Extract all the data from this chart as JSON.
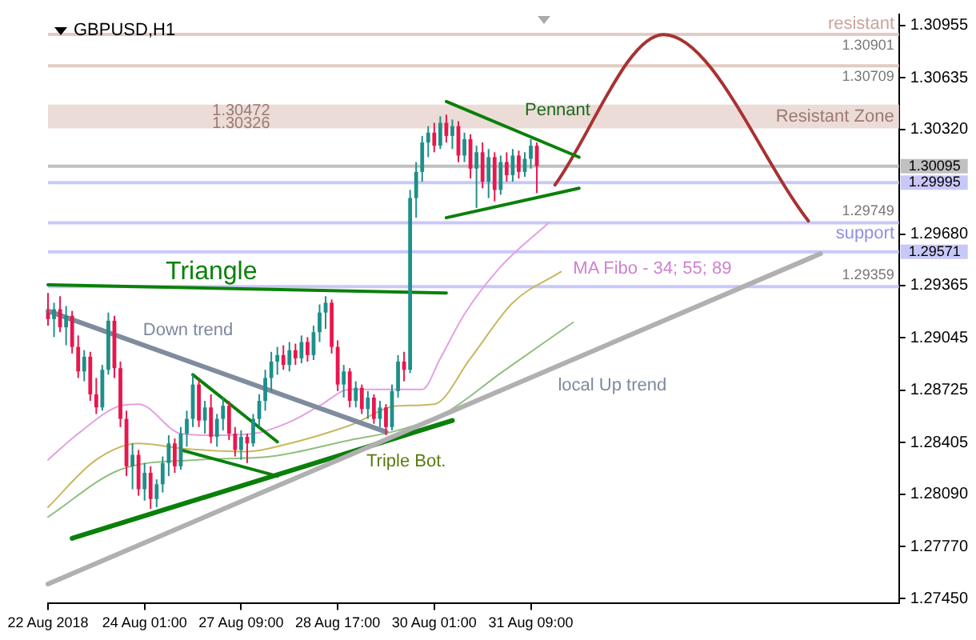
{
  "chart_data": {
    "type": "candlestick",
    "title": "GBPUSD,H1",
    "categories": [
      "22 Aug 2018",
      null,
      null,
      null,
      null,
      null,
      null,
      null,
      null,
      null,
      null,
      null,
      null,
      null,
      null,
      null,
      "24 Aug 01:00",
      null,
      null,
      null,
      null,
      null,
      null,
      null,
      null,
      null,
      null,
      null,
      null,
      null,
      null,
      null,
      "27 Aug 09:00",
      null,
      null,
      null,
      null,
      null,
      null,
      null,
      null,
      null,
      null,
      null,
      null,
      null,
      null,
      null,
      "28 Aug 17:00",
      null,
      null,
      null,
      null,
      null,
      null,
      null,
      null,
      null,
      null,
      null,
      null,
      null,
      null,
      null,
      "30 Aug 01:00",
      null,
      null,
      null,
      null,
      null,
      null,
      null,
      null,
      null,
      null,
      null,
      null,
      null,
      null,
      null,
      "31 Aug 09:00",
      null,
      null,
      null,
      null,
      null,
      null,
      null,
      null,
      null,
      null,
      null,
      null,
      null,
      null,
      null,
      null,
      null,
      null,
      null,
      null,
      null,
      null,
      null,
      null,
      null,
      null,
      null,
      null,
      null,
      null,
      null,
      null,
      null,
      null,
      null,
      null,
      null,
      null,
      null,
      null,
      null,
      null,
      null,
      null,
      null,
      null,
      null,
      null,
      null,
      null,
      null,
      null,
      null,
      null,
      null,
      null,
      null,
      null,
      null,
      null,
      null
    ],
    "ohlc": [
      [
        1.292,
        1.2932,
        1.2912,
        1.2916
      ],
      [
        1.2916,
        1.2926,
        1.2905,
        1.2922
      ],
      [
        1.2922,
        1.293,
        1.2908,
        1.2911
      ],
      [
        1.2911,
        1.2924,
        1.29,
        1.2918
      ],
      [
        1.2918,
        1.2921,
        1.2895,
        1.2899
      ],
      [
        1.2899,
        1.2906,
        1.288,
        1.2884
      ],
      [
        1.2884,
        1.2897,
        1.2878,
        1.2893
      ],
      [
        1.2893,
        1.2896,
        1.2866,
        1.287
      ],
      [
        1.287,
        1.288,
        1.2858,
        1.2862
      ],
      [
        1.2862,
        1.2888,
        1.286,
        1.2885
      ],
      [
        1.2885,
        1.292,
        1.2882,
        1.2915
      ],
      [
        1.2915,
        1.2918,
        1.288,
        1.2886
      ],
      [
        1.2886,
        1.289,
        1.285,
        1.2855
      ],
      [
        1.2855,
        1.286,
        1.282,
        1.2826
      ],
      [
        1.2826,
        1.284,
        1.2812,
        1.2833
      ],
      [
        1.2833,
        1.2836,
        1.2808,
        1.2812
      ],
      [
        1.2812,
        1.2828,
        1.2805,
        1.2822
      ],
      [
        1.2822,
        1.2826,
        1.28,
        1.2806
      ],
      [
        1.2806,
        1.2818,
        1.2801,
        1.2815
      ],
      [
        1.2815,
        1.2832,
        1.281,
        1.2828
      ],
      [
        1.2828,
        1.2845,
        1.282,
        1.284
      ],
      [
        1.284,
        1.2843,
        1.2822,
        1.2826
      ],
      [
        1.2826,
        1.285,
        1.2824,
        1.2846
      ],
      [
        1.2846,
        1.286,
        1.2838,
        1.2855
      ],
      [
        1.2855,
        1.2882,
        1.285,
        1.2876
      ],
      [
        1.2876,
        1.2879,
        1.285,
        1.2854
      ],
      [
        1.2854,
        1.2866,
        1.2846,
        1.2862
      ],
      [
        1.2862,
        1.287,
        1.284,
        1.2844
      ],
      [
        1.2844,
        1.2858,
        1.2838,
        1.2855
      ],
      [
        1.2855,
        1.2868,
        1.2848,
        1.2863
      ],
      [
        1.2863,
        1.2866,
        1.2842,
        1.2846
      ],
      [
        1.2846,
        1.285,
        1.2832,
        1.2836
      ],
      [
        1.2836,
        1.2848,
        1.283,
        1.2844
      ],
      [
        1.2844,
        1.2846,
        1.2828,
        1.284
      ],
      [
        1.284,
        1.2858,
        1.2838,
        1.2855
      ],
      [
        1.2855,
        1.287,
        1.285,
        1.2866
      ],
      [
        1.2866,
        1.2885,
        1.286,
        1.288
      ],
      [
        1.288,
        1.2896,
        1.2872,
        1.289
      ],
      [
        1.289,
        1.2899,
        1.2882,
        1.2894
      ],
      [
        1.2894,
        1.29,
        1.2885,
        1.2888
      ],
      [
        1.2888,
        1.2902,
        1.2884,
        1.2897
      ],
      [
        1.2897,
        1.2901,
        1.2888,
        1.2892
      ],
      [
        1.2892,
        1.2906,
        1.2889,
        1.2902
      ],
      [
        1.2902,
        1.2905,
        1.289,
        1.2894
      ],
      [
        1.2894,
        1.2912,
        1.2891,
        1.2908
      ],
      [
        1.2908,
        1.2925,
        1.2902,
        1.292
      ],
      [
        1.292,
        1.293,
        1.291,
        1.2926
      ],
      [
        1.2926,
        1.2928,
        1.2895,
        1.2899
      ],
      [
        1.2899,
        1.2903,
        1.2872,
        1.2876
      ],
      [
        1.2876,
        1.2888,
        1.2868,
        1.2884
      ],
      [
        1.2884,
        1.2886,
        1.2862,
        1.2866
      ],
      [
        1.2866,
        1.2878,
        1.2862,
        1.2874
      ],
      [
        1.2874,
        1.2876,
        1.2858,
        1.2861
      ],
      [
        1.2861,
        1.2872,
        1.2855,
        1.2868
      ],
      [
        1.2868,
        1.287,
        1.2852,
        1.2855
      ],
      [
        1.2855,
        1.2866,
        1.285,
        1.2862
      ],
      [
        1.2862,
        1.2864,
        1.2845,
        1.285
      ],
      [
        1.285,
        1.2876,
        1.2848,
        1.2872
      ],
      [
        1.2872,
        1.2894,
        1.2868,
        1.289
      ],
      [
        1.289,
        1.2896,
        1.2878,
        1.2885
      ],
      [
        1.2885,
        1.2995,
        1.2883,
        1.299
      ],
      [
        1.299,
        1.3012,
        1.2978,
        1.3006
      ],
      [
        1.3006,
        1.3028,
        1.3,
        1.3024
      ],
      [
        1.3024,
        1.3034,
        1.3015,
        1.303
      ],
      [
        1.303,
        1.3036,
        1.3018,
        1.3022
      ],
      [
        1.3022,
        1.304,
        1.302,
        1.3036
      ],
      [
        1.3036,
        1.3041,
        1.3024,
        1.3028
      ],
      [
        1.3028,
        1.3038,
        1.302,
        1.3034
      ],
      [
        1.3034,
        1.3037,
        1.3012,
        1.3016
      ],
      [
        1.3016,
        1.303,
        1.3012,
        1.3026
      ],
      [
        1.3026,
        1.3029,
        1.3002,
        1.3008
      ],
      [
        1.3008,
        1.3022,
        1.2984,
        1.3018
      ],
      [
        1.3018,
        1.3024,
        1.2996,
        1.3
      ],
      [
        1.3,
        1.302,
        1.299,
        1.3015
      ],
      [
        1.3015,
        1.3018,
        1.2988,
        1.2995
      ],
      [
        1.2995,
        1.3016,
        1.2992,
        1.3012
      ],
      [
        1.3012,
        1.3018,
        1.3,
        1.3004
      ],
      [
        1.3004,
        1.302,
        1.3,
        1.3016
      ],
      [
        1.3016,
        1.3019,
        1.3002,
        1.3006
      ],
      [
        1.3006,
        1.3018,
        1.3003,
        1.3014
      ],
      [
        1.3014,
        1.3026,
        1.3008,
        1.3022
      ],
      [
        1.3022,
        1.3024,
        1.2993,
        1.30095
      ],
      null,
      null,
      null,
      null,
      null,
      null,
      null,
      null,
      null,
      null,
      null,
      null,
      null,
      null,
      null,
      null,
      null,
      null,
      null,
      null,
      null,
      null,
      null,
      null,
      null,
      null,
      null,
      null,
      null,
      null,
      null,
      null,
      null,
      null,
      null,
      null,
      null,
      null,
      null,
      null,
      null,
      null,
      null,
      null,
      null,
      null,
      null,
      null,
      null,
      null,
      null,
      null,
      null,
      null,
      null,
      null,
      null,
      null,
      null,
      null
    ],
    "series": [
      {
        "type": "line",
        "color": "#7f8c9e",
        "values": [
          1.2921,
          null,
          null,
          null,
          null,
          null,
          null,
          null,
          null,
          null,
          null,
          null,
          null,
          null,
          null,
          null,
          null,
          null,
          null,
          null,
          null,
          null,
          null,
          null,
          null,
          null,
          null,
          null,
          null,
          null,
          null,
          null,
          null,
          null,
          null,
          null,
          null,
          null,
          null,
          null,
          null,
          null,
          null,
          null,
          null,
          null,
          null,
          null,
          null,
          null,
          null,
          null,
          null,
          null,
          null,
          null,
          1.2847,
          null,
          null,
          null,
          null,
          null,
          null,
          null,
          null,
          null,
          null,
          null,
          null,
          null,
          null,
          null,
          null,
          null,
          null,
          null,
          null,
          null,
          null,
          null,
          null,
          null,
          null,
          null,
          null,
          null,
          null,
          null,
          null,
          null,
          null,
          null,
          null,
          null,
          null,
          null,
          null,
          null,
          null,
          null,
          null,
          null,
          null,
          null,
          null,
          null,
          null,
          null,
          null,
          null,
          null,
          null,
          null,
          null,
          null,
          null,
          null,
          null,
          null,
          null,
          null,
          null,
          null,
          null,
          null,
          null,
          null,
          null,
          null,
          null,
          null,
          null,
          null,
          null,
          null,
          null,
          null,
          null,
          null,
          null,
          null,
          null
        ]
      },
      {
        "type": "line",
        "color": "#b0b0b0",
        "values": [
          1.2754,
          null,
          null,
          null,
          null,
          null,
          null,
          null,
          null,
          null,
          null,
          null,
          null,
          null,
          null,
          null,
          null,
          null,
          null,
          null,
          null,
          null,
          null,
          null,
          null,
          null,
          null,
          null,
          null,
          null,
          null,
          null,
          null,
          null,
          null,
          null,
          null,
          null,
          null,
          null,
          null,
          null,
          null,
          null,
          null,
          null,
          null,
          null,
          null,
          null,
          null,
          null,
          null,
          null,
          null,
          null,
          null,
          null,
          null,
          null,
          null,
          null,
          null,
          null,
          null,
          null,
          null,
          null,
          null,
          null,
          null,
          null,
          null,
          null,
          null,
          null,
          null,
          null,
          null,
          null,
          null,
          null,
          null,
          null,
          null,
          null,
          null,
          null,
          null,
          null,
          null,
          null,
          null,
          null,
          null,
          null,
          null,
          null,
          null,
          null,
          null,
          null,
          null,
          null,
          null,
          null,
          null,
          null,
          null,
          null,
          null,
          null,
          null,
          null,
          null,
          null,
          null,
          null,
          null,
          null,
          null,
          null,
          null,
          null,
          null,
          null,
          null,
          null,
          1.2956,
          null,
          null,
          null,
          null,
          null,
          null,
          null,
          null,
          null,
          null,
          null,
          null,
          null
        ]
      },
      {
        "type": "line",
        "color": "#0a800a",
        "values": [
          1.2937,
          null,
          null,
          null,
          null,
          null,
          null,
          null,
          null,
          null,
          null,
          null,
          null,
          null,
          null,
          null,
          null,
          null,
          null,
          null,
          null,
          null,
          null,
          null,
          null,
          null,
          null,
          null,
          null,
          null,
          null,
          null,
          null,
          null,
          null,
          null,
          null,
          null,
          null,
          null,
          null,
          null,
          null,
          null,
          null,
          null,
          null,
          null,
          null,
          null,
          null,
          null,
          null,
          null,
          null,
          null,
          null,
          null,
          null,
          null,
          null,
          null,
          null,
          null,
          null,
          null,
          1.2932,
          null,
          null,
          null,
          null,
          null,
          null,
          null,
          null,
          null,
          null,
          null,
          null,
          null,
          null,
          null,
          null,
          null,
          null,
          null,
          null,
          null,
          null,
          null,
          null,
          null,
          null,
          null,
          null,
          null,
          null,
          null,
          null,
          null,
          null,
          null,
          null,
          null,
          null,
          null,
          null,
          null,
          null,
          null,
          null,
          null,
          null,
          null,
          null,
          null,
          null,
          null,
          null,
          null,
          null,
          null,
          null,
          null,
          null,
          null,
          null,
          null,
          null,
          null,
          null,
          null,
          null,
          null,
          null,
          null,
          null,
          null,
          null,
          null,
          null,
          null
        ]
      },
      {
        "type": "line",
        "color": "#0a800a",
        "values": [
          null,
          null,
          null,
          null,
          null,
          null,
          null,
          null,
          null,
          null,
          null,
          null,
          null,
          null,
          null,
          null,
          null,
          null,
          null,
          null,
          null,
          null,
          null,
          null,
          null,
          null,
          null,
          null,
          null,
          null,
          null,
          null,
          null,
          null,
          null,
          null,
          null,
          null,
          null,
          null,
          null,
          null,
          null,
          null,
          null,
          null,
          null,
          null,
          null,
          null,
          null,
          null,
          null,
          null,
          null,
          null,
          null,
          null,
          null,
          null,
          null,
          null,
          null,
          null,
          null,
          null,
          1.3049,
          null,
          null,
          null,
          null,
          null,
          null,
          null,
          null,
          null,
          null,
          null,
          null,
          null,
          null,
          null,
          null,
          null,
          null,
          null,
          null,
          null,
          1.3015,
          null,
          null,
          null,
          null,
          null,
          null,
          null,
          null,
          null,
          null,
          null,
          null,
          null,
          null,
          null,
          null,
          null,
          null,
          null,
          null,
          null,
          null,
          null,
          null,
          null,
          null,
          null,
          null,
          null,
          null,
          null,
          null,
          null,
          null,
          null,
          null,
          null,
          null,
          null,
          null,
          null,
          null,
          null,
          null,
          null,
          null,
          null,
          null,
          null,
          null,
          null,
          null,
          null
        ]
      },
      {
        "type": "line",
        "color": "#0a800a",
        "values": [
          null,
          null,
          null,
          null,
          null,
          null,
          null,
          null,
          null,
          null,
          null,
          null,
          null,
          null,
          null,
          null,
          null,
          null,
          null,
          null,
          null,
          null,
          null,
          null,
          null,
          null,
          null,
          null,
          null,
          null,
          null,
          null,
          null,
          null,
          null,
          null,
          null,
          null,
          null,
          null,
          null,
          null,
          null,
          null,
          null,
          null,
          null,
          null,
          null,
          null,
          null,
          null,
          null,
          null,
          null,
          null,
          null,
          null,
          null,
          null,
          null,
          null,
          null,
          null,
          null,
          null,
          1.2978,
          null,
          null,
          null,
          null,
          null,
          null,
          null,
          null,
          null,
          null,
          null,
          null,
          null,
          null,
          null,
          null,
          null,
          null,
          null,
          null,
          null,
          1.2996,
          null,
          null,
          null,
          null,
          null,
          null,
          null,
          null,
          null,
          null,
          null,
          null,
          null,
          null,
          null,
          null,
          null,
          null,
          null,
          null,
          null,
          null,
          null,
          null,
          null,
          null,
          null,
          null,
          null,
          null,
          null,
          null,
          null,
          null,
          null,
          null,
          null,
          null,
          null,
          null,
          null,
          null,
          null,
          null,
          null,
          null,
          null,
          null,
          null,
          null,
          null,
          null,
          null
        ]
      },
      {
        "type": "line",
        "color": "#0a800a",
        "values": [
          null,
          null,
          null,
          null,
          null,
          null,
          null,
          null,
          null,
          null,
          null,
          null,
          null,
          null,
          null,
          null,
          null,
          null,
          null,
          null,
          null,
          null,
          null,
          null,
          1.2882,
          null,
          null,
          null,
          null,
          null,
          null,
          null,
          null,
          null,
          null,
          null,
          null,
          null,
          1.2841,
          null,
          null,
          null,
          null,
          null,
          null,
          null,
          null,
          null,
          null,
          null,
          null,
          null,
          null,
          null,
          null,
          null,
          null,
          null,
          null,
          null,
          null,
          null,
          null,
          null,
          null,
          null,
          null,
          null,
          null,
          null,
          null,
          null,
          null,
          null,
          null,
          null,
          null,
          null,
          null,
          null,
          null,
          null,
          null,
          null,
          null,
          null,
          null,
          null,
          null,
          null,
          null,
          null,
          null,
          null,
          null,
          null,
          null,
          null,
          null,
          null,
          null,
          null,
          null,
          null,
          null,
          null,
          null,
          null,
          null,
          null,
          null,
          null,
          null,
          null,
          null,
          null,
          null,
          null,
          null,
          null,
          null,
          null,
          null,
          null,
          null,
          null,
          null,
          null,
          null,
          null,
          null,
          null,
          null,
          null,
          null,
          null,
          null,
          null,
          null,
          null,
          null,
          null
        ]
      },
      {
        "type": "line",
        "color": "#0a800a",
        "values": [
          null,
          null,
          null,
          null,
          null,
          null,
          null,
          null,
          null,
          null,
          null,
          null,
          null,
          null,
          null,
          null,
          null,
          null,
          null,
          null,
          null,
          null,
          1.2836,
          null,
          null,
          null,
          null,
          null,
          null,
          null,
          null,
          null,
          null,
          null,
          null,
          null,
          null,
          null,
          1.282,
          null,
          null,
          null,
          null,
          null,
          null,
          null,
          null,
          null,
          null,
          null,
          null,
          null,
          null,
          null,
          null,
          null,
          null,
          null,
          null,
          null,
          null,
          null,
          null,
          null,
          null,
          null,
          null,
          null,
          null,
          null,
          null,
          null,
          null,
          null,
          null,
          null,
          null,
          null,
          null,
          null,
          null,
          null,
          null,
          null,
          null,
          null,
          null,
          null,
          null,
          null,
          null,
          null,
          null,
          null,
          null,
          null,
          null,
          null,
          null,
          null,
          null,
          null,
          null,
          null,
          null,
          null,
          null,
          null,
          null,
          null,
          null,
          null,
          null,
          null,
          null,
          null,
          null,
          null,
          null,
          null,
          null,
          null,
          null,
          null,
          null,
          null,
          null,
          null,
          null,
          null,
          null,
          null,
          null,
          null,
          null,
          null,
          null,
          null,
          null,
          null,
          null,
          null
        ]
      },
      {
        "type": "line",
        "color": "#0a800a",
        "values": [
          null,
          null,
          null,
          null,
          1.2782,
          null,
          null,
          null,
          null,
          null,
          null,
          null,
          null,
          null,
          null,
          null,
          null,
          null,
          null,
          null,
          null,
          null,
          null,
          null,
          null,
          null,
          null,
          null,
          null,
          null,
          null,
          null,
          null,
          null,
          null,
          null,
          null,
          null,
          null,
          null,
          null,
          null,
          null,
          null,
          null,
          null,
          null,
          null,
          null,
          null,
          null,
          null,
          null,
          null,
          null,
          null,
          null,
          null,
          null,
          null,
          null,
          null,
          null,
          null,
          null,
          null,
          null,
          1.2854,
          null,
          null,
          null,
          null,
          null,
          null,
          null,
          null,
          null,
          null,
          null,
          null,
          null,
          null,
          null,
          null,
          null,
          null,
          null,
          null,
          null,
          null,
          null,
          null,
          null,
          null,
          null,
          null,
          null,
          null,
          null,
          null,
          null,
          null,
          null,
          null,
          null,
          null,
          null,
          null,
          null,
          null,
          null,
          null,
          null,
          null,
          null,
          null,
          null,
          null,
          null,
          null,
          null,
          null,
          null,
          null,
          null,
          null,
          null,
          null,
          null,
          null,
          null,
          null,
          null,
          null,
          null,
          null,
          null,
          null,
          null,
          null,
          null,
          null
        ]
      },
      {
        "type": "line",
        "color": "#a83232",
        "values": [
          null,
          null,
          null,
          null,
          null,
          null,
          null,
          null,
          null,
          null,
          null,
          null,
          null,
          null,
          null,
          null,
          null,
          null,
          null,
          null,
          null,
          null,
          null,
          null,
          null,
          null,
          null,
          null,
          null,
          null,
          null,
          null,
          null,
          null,
          null,
          null,
          null,
          null,
          null,
          null,
          null,
          null,
          null,
          null,
          null,
          null,
          null,
          null,
          null,
          null,
          null,
          null,
          null,
          null,
          null,
          null,
          null,
          null,
          null,
          null,
          null,
          null,
          null,
          null,
          null,
          null,
          null,
          null,
          null,
          null,
          null,
          null,
          null,
          null,
          null,
          null,
          null,
          null,
          null,
          null,
          null,
          null,
          null,
          null,
          1.2998,
          null,
          null,
          null,
          null,
          null,
          null,
          null,
          null,
          null,
          null,
          null,
          null,
          null,
          null,
          null,
          null,
          null,
          1.309,
          null,
          null,
          null,
          null,
          null,
          null,
          null,
          null,
          null,
          null,
          null,
          null,
          null,
          null,
          null,
          null,
          null,
          null,
          null,
          null,
          null,
          null,
          null,
          1.2976,
          null,
          null,
          null,
          null,
          null,
          null,
          null,
          null,
          null,
          null,
          null,
          null,
          null,
          null,
          null
        ]
      },
      {
        "type": "line",
        "color": "#e2a0e2",
        "values": [
          1.283,
          null,
          null,
          null,
          null,
          1.2846,
          null,
          null,
          null,
          null,
          null,
          null,
          1.2863,
          null,
          null,
          1.2864,
          null,
          null,
          null,
          null,
          null,
          null,
          1.2846,
          null,
          null,
          null,
          null,
          1.2845,
          null,
          null,
          null,
          null,
          null,
          null,
          1.2846,
          null,
          null,
          null,
          null,
          null,
          1.2853,
          null,
          null,
          null,
          null,
          1.2863,
          null,
          null,
          null,
          null,
          1.2873,
          null,
          null,
          null,
          null,
          null,
          null,
          null,
          1.2873,
          null,
          null,
          null,
          1.2873,
          null,
          null,
          1.2892,
          null,
          null,
          null,
          1.2919,
          null,
          null,
          null,
          null,
          null,
          1.2948,
          null,
          null,
          null,
          null,
          null,
          null,
          null,
          1.2975,
          null,
          null,
          null,
          null,
          null,
          null,
          null,
          null,
          null,
          null,
          null,
          null,
          null,
          null,
          null,
          null,
          null,
          null,
          null,
          null,
          null,
          null,
          null,
          null,
          null,
          null,
          null,
          null,
          null,
          null,
          null,
          null,
          null,
          null,
          null,
          null,
          null,
          null,
          null,
          null,
          null,
          null,
          null,
          null,
          null,
          null,
          null,
          null,
          null,
          null,
          null,
          null,
          null,
          null,
          null,
          null,
          null,
          null
        ]
      },
      {
        "type": "line",
        "color": "#c8b860",
        "values": [
          1.2801,
          null,
          null,
          null,
          null,
          null,
          null,
          null,
          1.283,
          null,
          null,
          null,
          null,
          null,
          null,
          1.284,
          null,
          null,
          null,
          null,
          null,
          null,
          1.2837,
          null,
          null,
          null,
          null,
          null,
          null,
          null,
          null,
          null,
          null,
          1.2835,
          null,
          null,
          null,
          null,
          null,
          1.2839,
          null,
          null,
          null,
          null,
          null,
          null,
          null,
          null,
          null,
          null,
          1.2851,
          null,
          null,
          null,
          null,
          null,
          null,
          null,
          1.2863,
          null,
          null,
          null,
          null,
          null,
          1.2864,
          null,
          null,
          null,
          null,
          null,
          1.2892,
          null,
          null,
          null,
          null,
          null,
          null,
          1.2926,
          null,
          null,
          null,
          null,
          null,
          null,
          null,
          1.2945,
          null,
          null,
          null,
          null,
          null,
          null,
          null,
          null,
          null,
          null,
          null,
          null,
          null,
          null,
          null,
          null,
          null,
          null,
          null,
          null,
          null,
          null,
          null,
          null,
          null,
          null,
          null,
          null,
          null,
          null,
          null,
          null,
          null,
          null,
          null,
          null,
          null,
          null,
          null,
          null,
          null,
          null,
          null,
          null,
          null,
          null,
          null,
          null,
          null,
          null,
          null,
          null,
          null,
          null,
          null,
          null
        ]
      },
      {
        "type": "line",
        "color": "#8fbf80",
        "values": [
          1.2795,
          null,
          null,
          null,
          null,
          null,
          null,
          null,
          null,
          null,
          null,
          null,
          1.2824,
          null,
          null,
          null,
          null,
          null,
          null,
          null,
          null,
          null,
          null,
          null,
          null,
          1.283,
          null,
          null,
          null,
          null,
          null,
          null,
          null,
          null,
          null,
          null,
          null,
          1.2832,
          null,
          null,
          null,
          null,
          null,
          null,
          null,
          null,
          null,
          null,
          null,
          null,
          1.2842,
          null,
          null,
          null,
          null,
          null,
          null,
          null,
          1.2848,
          null,
          null,
          null,
          null,
          null,
          null,
          null,
          1.2859,
          null,
          null,
          null,
          null,
          null,
          null,
          null,
          null,
          1.2883,
          null,
          null,
          null,
          null,
          null,
          null,
          null,
          null,
          null,
          null,
          null,
          1.2914,
          null,
          null,
          null,
          null,
          null,
          null,
          null,
          null,
          null,
          null,
          null,
          null,
          null,
          null,
          null,
          null,
          null,
          null,
          null,
          null,
          null,
          null,
          null,
          null,
          null,
          null,
          null,
          null,
          null,
          null,
          null,
          null,
          null,
          null,
          null,
          null,
          null,
          null,
          null,
          null,
          null,
          null,
          null,
          null,
          null,
          null,
          null,
          null,
          null,
          null,
          null,
          null,
          null,
          null
        ]
      }
    ],
    "ylim": [
      1.27421,
      1.31023
    ],
    "yticks": [
      1.30955,
      1.30635,
      {
        "value": 1.3032,
        "label": "1.30320"
      },
      {
        "value": 1.2968,
        "label": "1.29680"
      },
      1.29365,
      1.29045,
      1.28725,
      1.28405,
      {
        "value": 1.2809,
        "label": "1.28090"
      },
      {
        "value": 1.2777,
        "label": "1.27770"
      },
      {
        "value": 1.2745,
        "label": "1.27450"
      }
    ],
    "ref_lines": [
      {
        "axis": "y",
        "value": 1.30901,
        "label": "1.30901",
        "color": "#e3cbc3"
      },
      {
        "axis": "y",
        "value": 1.30709,
        "label": "1.30709",
        "color": "#e3cbc3"
      },
      {
        "axis": "y",
        "value": 1.30095,
        "label": "1.30095",
        "color": "#c0c0c0"
      },
      {
        "axis": "y",
        "value": 1.29995,
        "label": "1.29995",
        "color": "#c8c8f8"
      },
      {
        "axis": "y",
        "value": 1.29749,
        "label": "1.29749",
        "color": "#c8c8f8"
      },
      {
        "axis": "y",
        "value": 1.29571,
        "label": "1.29571",
        "color": "#c8c8f8"
      },
      {
        "axis": "y",
        "value": 1.29359,
        "label": "1.29359",
        "color": "#c8c8f8"
      }
    ],
    "bands": [
      {
        "axis": "y",
        "from": 1.30326,
        "to": 1.30472,
        "label": "Resistant Zone",
        "color": "#ecdcd8"
      }
    ],
    "annotations": [
      "resistant",
      "1.30472",
      "1.30326",
      "support",
      "MA Fibo - 34; 55; 89",
      "Triangle",
      "Down trend",
      "Pennant",
      "Triple Bot.",
      "local Up trend"
    ]
  }
}
